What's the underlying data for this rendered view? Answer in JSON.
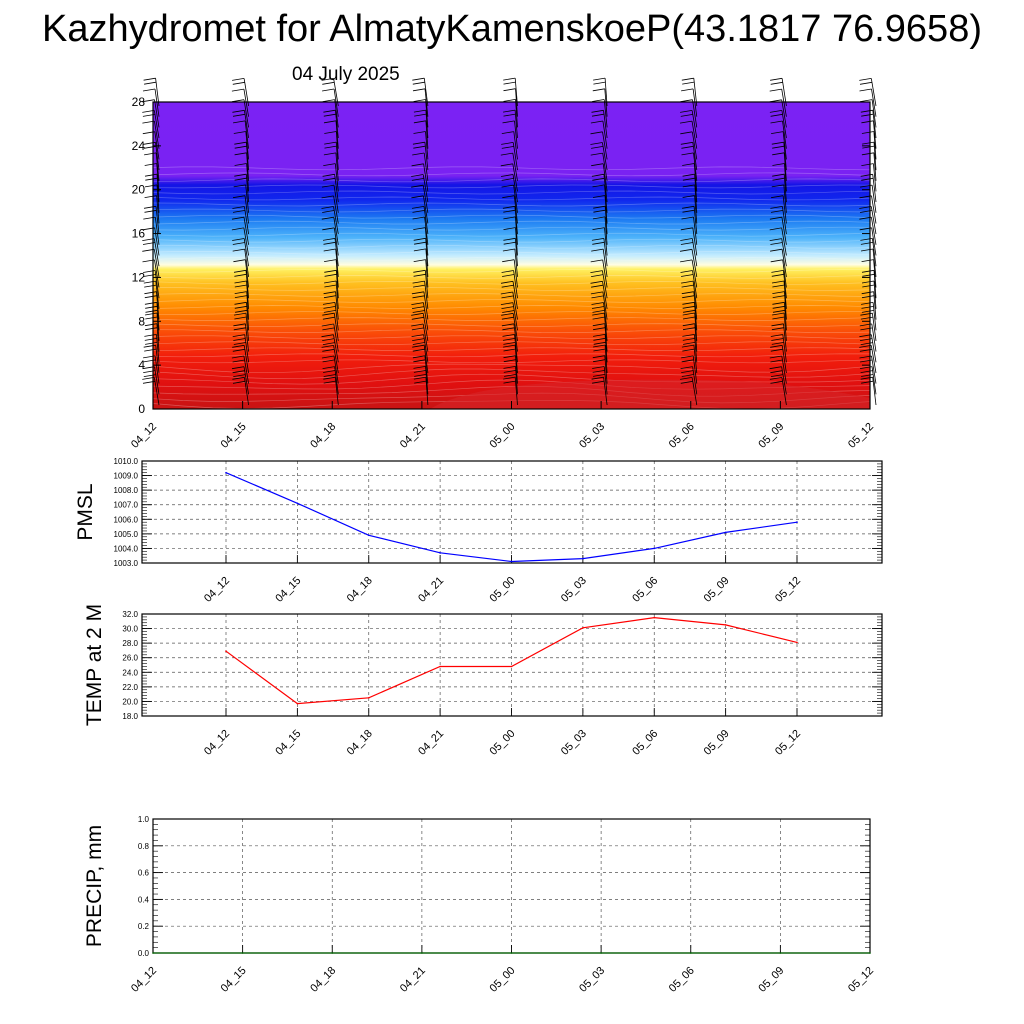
{
  "title": "Kazhydromet for AlmatyKamenskoeP(43.1817 76.9658)",
  "subtitle": "04 July 2025",
  "colors": {
    "pmsl_line": "#0000ff",
    "temp_line": "#ff0000",
    "precip_line": "#006400",
    "grid": "#000000"
  },
  "chart_data": [
    {
      "type": "heatmap",
      "title": "",
      "xlabel": "",
      "ylabel": "",
      "x_tick_labels": [
        "04_12",
        "04_15",
        "04_18",
        "04_21",
        "05_00",
        "05_03",
        "05_06",
        "05_09",
        "05_12"
      ],
      "y_ticks": [
        0,
        4,
        8,
        12,
        16,
        20,
        24,
        28
      ],
      "ylim": [
        0,
        28
      ],
      "palette": "temperature contours: dark red near surface, orange/yellow up to ~13, light blue to blue ~16-21, violet above 21",
      "wind_barbs": true
    },
    {
      "type": "line",
      "title": "",
      "ylabel": "PMSL",
      "x": [
        "04_12",
        "04_15",
        "04_18",
        "04_21",
        "05_00",
        "05_03",
        "05_06",
        "05_09",
        "05_12"
      ],
      "series": [
        {
          "values": [
            1009.2,
            1007.1,
            1004.9,
            1003.7,
            1003.1,
            1003.3,
            1004.0,
            1005.1,
            1005.8
          ]
        }
      ],
      "ylim": [
        1003.0,
        1010.0
      ],
      "y_ticks": [
        "1003.0",
        "1004.0",
        "1005.0",
        "1006.0",
        "1007.0",
        "1008.0",
        "1009.0",
        "1010.0"
      ],
      "grid": true
    },
    {
      "type": "line",
      "title": "",
      "ylabel": "TEMP at 2 M",
      "x": [
        "04_12",
        "04_15",
        "04_18",
        "04_21",
        "05_00",
        "05_03",
        "05_06",
        "05_09",
        "05_12"
      ],
      "series": [
        {
          "values": [
            26.9,
            19.7,
            20.5,
            24.8,
            24.8,
            30.1,
            31.5,
            30.5,
            28.1
          ]
        }
      ],
      "ylim": [
        18.0,
        32.0
      ],
      "y_ticks": [
        "18.0",
        "20.0",
        "22.0",
        "24.0",
        "26.0",
        "28.0",
        "30.0",
        "32.0"
      ],
      "grid": true
    },
    {
      "type": "line",
      "title": "",
      "ylabel": "PRECIP, mm",
      "x": [
        "04_12",
        "04_15",
        "04_18",
        "04_21",
        "05_00",
        "05_03",
        "05_06",
        "05_09",
        "05_12"
      ],
      "series": [
        {
          "values": [
            0,
            0,
            0,
            0,
            0,
            0,
            0,
            0,
            0
          ]
        }
      ],
      "ylim": [
        0.0,
        1.0
      ],
      "y_ticks": [
        "0.0",
        "0.2",
        "0.4",
        "0.6",
        "0.8",
        "1.0"
      ],
      "grid": true
    }
  ]
}
